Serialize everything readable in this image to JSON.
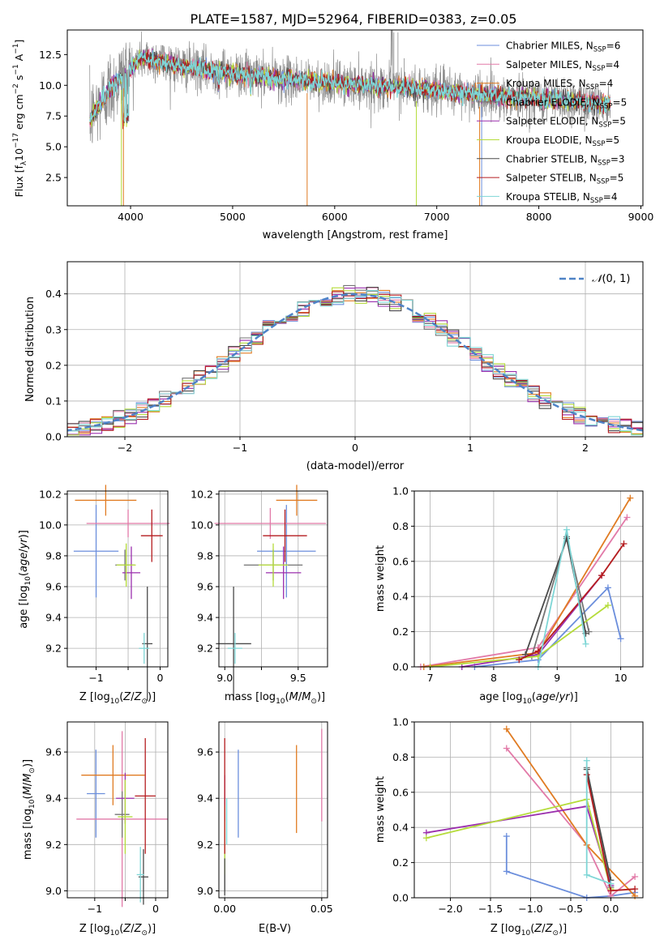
{
  "title": "PLATE=1587, MJD=52964, FIBERID=0383, z=0.05",
  "series": [
    {
      "name": "Chabrier MILES, N_{SSP}=6",
      "label_main": "Chabrier MILES, N",
      "label_sub": "SSP",
      "label_tail": "=6",
      "color": "#6b8edc"
    },
    {
      "name": "Salpeter MILES, N_{SSP}=4",
      "label_main": "Salpeter MILES, N",
      "label_sub": "SSP",
      "label_tail": "=4",
      "color": "#e27aa8"
    },
    {
      "name": "Kroupa MILES, N_{SSP}=4",
      "label_main": "Kroupa MILES, N",
      "label_sub": "SSP",
      "label_tail": "=4",
      "color": "#e07b22"
    },
    {
      "name": "Chabrier ELODIE, N_{SSP}=5",
      "label_main": "Chabrier ELODIE, N",
      "label_sub": "SSP",
      "label_tail": "=5",
      "color": "#757575"
    },
    {
      "name": "Salpeter ELODIE, N_{SSP}=5",
      "label_main": "Salpeter ELODIE, N",
      "label_sub": "SSP",
      "label_tail": "=5",
      "color": "#9b2fae"
    },
    {
      "name": "Kroupa ELODIE, N_{SSP}=5",
      "label_main": "Kroupa ELODIE, N",
      "label_sub": "SSP",
      "label_tail": "=5",
      "color": "#b5dc3a"
    },
    {
      "name": "Chabrier STELIB, N_{SSP}=3",
      "label_main": "Chabrier STELIB, N",
      "label_sub": "SSP",
      "label_tail": "=3",
      "color": "#4a4a4a"
    },
    {
      "name": "Salpeter STELIB, N_{SSP}=5",
      "label_main": "Salpeter STELIB, N",
      "label_sub": "SSP",
      "label_tail": "=5",
      "color": "#b51d20"
    },
    {
      "name": "Kroupa STELIB, N_{SSP}=4",
      "label_main": "Kroupa STELIB, N",
      "label_sub": "SSP",
      "label_tail": "=4",
      "color": "#7ed6d6"
    }
  ],
  "chart_data": [
    {
      "id": "spectrum",
      "type": "line",
      "title": "PLATE=1587, MJD=52964, FIBERID=0383, z=0.05",
      "xlabel": "wavelength [Angstrom, rest frame]",
      "ylabel": "Flux [f_λ 10^{-17} erg cm^{-2} s^{-1} A^{-1}]",
      "xlim": [
        3380,
        9020
      ],
      "ylim": [
        0.2,
        14.5
      ],
      "xticks": [
        4000,
        5000,
        6000,
        7000,
        8000,
        9000
      ],
      "yticks": [
        2.5,
        5.0,
        7.5,
        10.0,
        12.5
      ],
      "continuum": {
        "x": [
          3600,
          3800,
          4000,
          4100,
          4300,
          4500,
          5000,
          5500,
          6000,
          6500,
          7000,
          7500,
          8000,
          8500,
          8700
        ],
        "y": [
          7.2,
          9.8,
          11.3,
          12.3,
          12.0,
          11.5,
          11.0,
          10.5,
          10.2,
          9.9,
          9.6,
          9.2,
          8.9,
          8.6,
          8.5
        ]
      },
      "legend": "upper right",
      "grid": false
    },
    {
      "id": "residuals",
      "type": "step",
      "xlabel": "(data-model)/error",
      "ylabel": "Normed distribution",
      "xlim": [
        -2.5,
        2.5
      ],
      "ylim": [
        0,
        0.49
      ],
      "xticks": [
        -2,
        -1,
        0,
        1,
        2
      ],
      "yticks": [
        0.0,
        0.1,
        0.2,
        0.3,
        0.4
      ],
      "bin_width": 0.1,
      "reference": {
        "name": "N(0,1)",
        "style": "dashed",
        "color": "#4e83c6"
      },
      "legend": "upper right",
      "grid": true
    },
    {
      "id": "age_vs_Z",
      "type": "errorbar",
      "xlabel": "Z [log10(Z/Z⊙)]",
      "ylabel": "age [log10(age/yr)]",
      "xlim": [
        -1.45,
        0.12
      ],
      "ylim": [
        9.08,
        10.22
      ],
      "xticks": [
        -1,
        -0.5,
        0
      ],
      "xticklabels": [
        "−1",
        "",
        "0"
      ],
      "yticks": [
        9.2,
        9.4,
        9.6,
        9.8,
        10.0,
        10.2
      ],
      "points": [
        {
          "series": 0,
          "x": -1.0,
          "xerr": 0.35,
          "y": 9.83,
          "yerr": 0.3
        },
        {
          "series": 1,
          "x": -0.5,
          "xerr": 0.65,
          "y": 10.01,
          "yerr": 0.09
        },
        {
          "series": 2,
          "x": -0.85,
          "xerr": 0.48,
          "y": 10.16,
          "yerr": 0.1
        },
        {
          "series": 3,
          "x": -0.55,
          "xerr": 0.15,
          "y": 9.74,
          "yerr": 0.1
        },
        {
          "series": 4,
          "x": -0.45,
          "xerr": 0.14,
          "y": 9.69,
          "yerr": 0.17
        },
        {
          "series": 5,
          "x": -0.53,
          "xerr": 0.15,
          "y": 9.74,
          "yerr": 0.14
        },
        {
          "series": 6,
          "x": -0.2,
          "xerr": 0.08,
          "y": 9.23,
          "yerr": 0.37
        },
        {
          "series": 7,
          "x": -0.13,
          "xerr": 0.17,
          "y": 9.93,
          "yerr": 0.17
        },
        {
          "series": 8,
          "x": -0.25,
          "xerr": 0.08,
          "y": 9.2,
          "yerr": 0.1
        }
      ],
      "grid": true
    },
    {
      "id": "age_vs_mass",
      "type": "errorbar",
      "xlabel": "mass [log10(M/M⊙)]",
      "xlim": [
        8.96,
        9.7
      ],
      "ylim": [
        9.08,
        10.22
      ],
      "xticks": [
        9.0,
        9.25,
        9.5
      ],
      "xticklabels": [
        "9.0",
        "",
        "9.5"
      ],
      "yticks": [
        9.2,
        9.4,
        9.6,
        9.8,
        10.0,
        10.2
      ],
      "points": [
        {
          "series": 0,
          "x": 9.42,
          "xerr": 0.2,
          "y": 9.83,
          "yerr": 0.3
        },
        {
          "series": 1,
          "x": 9.31,
          "xerr": 0.38,
          "y": 10.01,
          "yerr": 0.1
        },
        {
          "series": 2,
          "x": 9.49,
          "xerr": 0.14,
          "y": 10.16,
          "yerr": 0.1
        },
        {
          "series": 3,
          "x": 9.33,
          "xerr": 0.2,
          "y": 9.74,
          "yerr": 0.1
        },
        {
          "series": 4,
          "x": 9.4,
          "xerr": 0.12,
          "y": 9.69,
          "yerr": 0.17
        },
        {
          "series": 5,
          "x": 9.33,
          "xerr": 0.1,
          "y": 9.74,
          "yerr": 0.14
        },
        {
          "series": 6,
          "x": 9.06,
          "xerr": 0.12,
          "y": 9.23,
          "yerr": 0.37
        },
        {
          "series": 7,
          "x": 9.41,
          "xerr": 0.15,
          "y": 9.93,
          "yerr": 0.17
        },
        {
          "series": 8,
          "x": 9.07,
          "xerr": 0.05,
          "y": 9.2,
          "yerr": 0.1
        }
      ],
      "grid": true
    },
    {
      "id": "weight_vs_age",
      "type": "line",
      "xlabel": "age [log10(age/yr)]",
      "ylabel": "mass weight",
      "xlim": [
        6.75,
        10.35
      ],
      "ylim": [
        0.0,
        1.0
      ],
      "xticks": [
        7,
        8,
        9,
        10
      ],
      "yticks": [
        0.0,
        0.2,
        0.4,
        0.6,
        0.8,
        1.0
      ],
      "lines": [
        {
          "series": 0,
          "x": [
            7.7,
            8.7,
            9.8,
            10.0
          ],
          "y": [
            0.0,
            0.04,
            0.45,
            0.16
          ]
        },
        {
          "series": 1,
          "x": [
            6.85,
            8.7,
            10.1
          ],
          "y": [
            0.0,
            0.11,
            0.85
          ]
        },
        {
          "series": 2,
          "x": [
            6.9,
            8.7,
            10.15
          ],
          "y": [
            0.0,
            0.08,
            0.96
          ]
        },
        {
          "series": 3,
          "x": [
            8.6,
            9.15,
            9.5
          ],
          "y": [
            0.06,
            0.74,
            0.2
          ]
        },
        {
          "series": 4,
          "x": [
            7.5,
            8.7,
            9.7
          ],
          "y": [
            0.0,
            0.07,
            0.52
          ]
        },
        {
          "series": 5,
          "x": [
            7.0,
            8.7,
            9.8
          ],
          "y": [
            0.0,
            0.06,
            0.35
          ]
        },
        {
          "series": 6,
          "x": [
            8.5,
            9.15,
            9.45
          ],
          "y": [
            0.07,
            0.73,
            0.19
          ]
        },
        {
          "series": 7,
          "x": [
            8.4,
            8.7,
            9.7,
            10.05
          ],
          "y": [
            0.04,
            0.09,
            0.52,
            0.7
          ]
        },
        {
          "series": 8,
          "x": [
            8.7,
            9.15,
            9.45
          ],
          "y": [
            0.0,
            0.78,
            0.13
          ]
        }
      ],
      "grid": true
    },
    {
      "id": "mass_vs_Z",
      "type": "errorbar",
      "xlabel": "Z [log10(Z/Z⊙)]",
      "ylabel": "mass [log10(M/M⊙)]",
      "xlim": [
        -1.45,
        0.2
      ],
      "ylim": [
        8.97,
        9.73
      ],
      "xticks": [
        -1,
        -0.5,
        0
      ],
      "xticklabels": [
        "−1",
        "",
        "0"
      ],
      "yticks": [
        9.0,
        9.2,
        9.4,
        9.6
      ],
      "points": [
        {
          "series": 0,
          "x": -0.98,
          "xerr": 0.15,
          "y": 9.42,
          "yerr": 0.19
        },
        {
          "series": 1,
          "x": -0.55,
          "xerr": 0.75,
          "y": 9.31,
          "yerr": 0.38
        },
        {
          "series": 2,
          "x": -0.7,
          "xerr": 0.52,
          "y": 9.5,
          "yerr": 0.13
        },
        {
          "series": 3,
          "x": -0.55,
          "xerr": 0.12,
          "y": 9.33,
          "yerr": 0.1
        },
        {
          "series": 4,
          "x": -0.5,
          "xerr": 0.15,
          "y": 9.4,
          "yerr": 0.11
        },
        {
          "series": 5,
          "x": -0.5,
          "xerr": 0.12,
          "y": 9.32,
          "yerr": 0.16
        },
        {
          "series": 6,
          "x": -0.2,
          "xerr": 0.08,
          "y": 9.06,
          "yerr": 0.12
        },
        {
          "series": 7,
          "x": -0.17,
          "xerr": 0.17,
          "y": 9.41,
          "yerr": 0.25
        },
        {
          "series": 8,
          "x": -0.25,
          "xerr": 0.06,
          "y": 9.07,
          "yerr": 0.12
        }
      ],
      "grid": true
    },
    {
      "id": "mass_vs_ebv",
      "type": "errorbar",
      "xlabel": "E(B-V)",
      "xlim": [
        -0.003,
        0.053
      ],
      "ylim": [
        8.97,
        9.73
      ],
      "xticks": [
        0.0,
        0.05
      ],
      "xticklabels": [
        "0.00",
        "0.05"
      ],
      "yticks": [
        9.0,
        9.2,
        9.4,
        9.6
      ],
      "points": [
        {
          "series": 0,
          "x": 0.007,
          "xerr": 0,
          "y": 9.42,
          "yerr": 0.19
        },
        {
          "series": 1,
          "x": 0.05,
          "xerr": 0,
          "y": 9.5,
          "yerr": 0.2
        },
        {
          "series": 2,
          "x": 0.037,
          "xerr": 0,
          "y": 9.44,
          "yerr": 0.19
        },
        {
          "series": 3,
          "x": 0.0,
          "xerr": 0,
          "y": 9.1,
          "yerr": 0.1
        },
        {
          "series": 4,
          "x": 0.0,
          "xerr": 0,
          "y": 9.4,
          "yerr": 0.1
        },
        {
          "series": 5,
          "x": 0.0,
          "xerr": 0,
          "y": 9.22,
          "yerr": 0.15
        },
        {
          "series": 6,
          "x": 0.0,
          "xerr": 0,
          "y": 9.06,
          "yerr": 0.08
        },
        {
          "series": 7,
          "x": 0.0,
          "xerr": 0,
          "y": 9.41,
          "yerr": 0.25
        },
        {
          "series": 8,
          "x": 0.001,
          "xerr": 0,
          "y": 9.3,
          "yerr": 0.1
        }
      ],
      "grid": true
    },
    {
      "id": "weight_vs_Z",
      "type": "line",
      "xlabel": "Z [log10(Z/Z⊙)]",
      "ylabel": "mass weight",
      "xlim": [
        -2.45,
        0.4
      ],
      "ylim": [
        0.0,
        1.0
      ],
      "xticks": [
        -2.0,
        -1.5,
        -1.0,
        -0.5,
        0.0
      ],
      "xticklabels": [
        "−2.0",
        "−1.5",
        "−1.0",
        "−0.5",
        "0.0"
      ],
      "yticks": [
        0.0,
        0.2,
        0.4,
        0.6,
        0.8,
        1.0
      ],
      "lines": [
        {
          "series": 0,
          "x": [
            -1.3,
            -1.3,
            -0.3,
            0.0,
            0.3
          ],
          "y": [
            0.35,
            0.15,
            0.0,
            0.01,
            0.03
          ]
        },
        {
          "series": 1,
          "x": [
            -1.3,
            -0.3,
            0.0,
            0.3
          ],
          "y": [
            0.85,
            0.3,
            0.01,
            0.12
          ]
        },
        {
          "series": 2,
          "x": [
            -1.3,
            -0.3,
            0.3
          ],
          "y": [
            0.96,
            0.3,
            0.01
          ]
        },
        {
          "series": 3,
          "x": [
            -0.3,
            0.0
          ],
          "y": [
            0.74,
            0.06
          ]
        },
        {
          "series": 4,
          "x": [
            -2.3,
            -0.3,
            0.0
          ],
          "y": [
            0.37,
            0.52,
            0.07
          ]
        },
        {
          "series": 5,
          "x": [
            -2.3,
            -0.3,
            0.0
          ],
          "y": [
            0.34,
            0.56,
            0.05
          ]
        },
        {
          "series": 6,
          "x": [
            -0.3,
            0.0
          ],
          "y": [
            0.73,
            0.1
          ]
        },
        {
          "series": 7,
          "x": [
            -0.3,
            0.0,
            0.3
          ],
          "y": [
            0.7,
            0.04,
            0.05
          ]
        },
        {
          "series": 8,
          "x": [
            -0.3,
            -0.3,
            0.0
          ],
          "y": [
            0.78,
            0.13,
            0.08
          ]
        }
      ],
      "grid": true
    }
  ]
}
